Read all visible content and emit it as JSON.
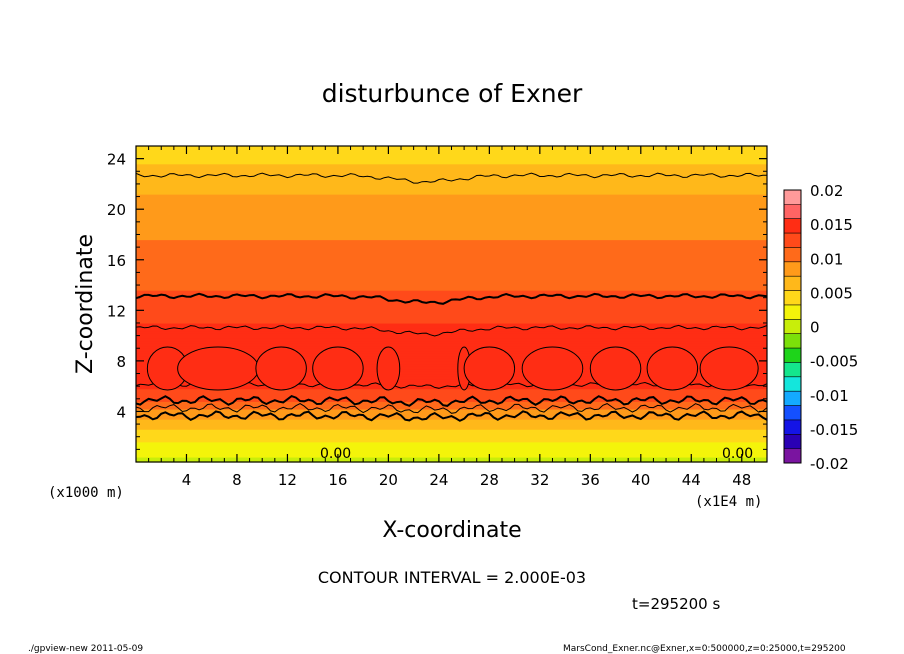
{
  "chart_data": {
    "type": "heatmap",
    "title": "disturbunce of Exner",
    "xlabel": "X-coordinate",
    "ylabel": "Z-coordinate",
    "x_unit": "(x1E4 m)",
    "y_unit": "(x1000 m)",
    "x_ticks": [
      "4",
      "8",
      "12",
      "16",
      "20",
      "24",
      "28",
      "32",
      "36",
      "40",
      "44",
      "48"
    ],
    "y_ticks": [
      "4",
      "8",
      "12",
      "16",
      "20",
      "24"
    ],
    "xlim": [
      0,
      50
    ],
    "ylim": [
      0,
      25
    ],
    "contour_interval_text": "CONTOUR INTERVAL = 2.000E-03",
    "time_text": "t=295200 s",
    "contour_labels": [
      "0.00",
      "0.00"
    ],
    "colorbar": {
      "labels": [
        "0.02",
        "0.015",
        "0.01",
        "0.005",
        "0",
        "-0.005",
        "-0.01",
        "-0.015",
        "-0.02"
      ],
      "colors": [
        "#ff9a9a",
        "#ff6464",
        "#ff2d14",
        "#ff4a1a",
        "#ff6a1a",
        "#ff9a1a",
        "#ffb81a",
        "#ffd81a",
        "#f4f40a",
        "#c8ee0a",
        "#7ce00a",
        "#1ed41a",
        "#14e68c",
        "#14e6dc",
        "#14aaff",
        "#1450ff",
        "#1414e6",
        "#2a00b4",
        "#7a14a0"
      ]
    },
    "band_profile_z": [
      0.0,
      1.0,
      2.0,
      3.0,
      4.0,
      5.0,
      6.5,
      8.0,
      10.0,
      12.5,
      15.0,
      17.5,
      20.0,
      22.0,
      24.0,
      25.0
    ],
    "band_profile_value": [
      0.0005,
      0.002,
      0.004,
      0.006,
      0.009,
      0.0125,
      0.0145,
      0.0152,
      0.0145,
      0.0125,
      0.0105,
      0.0095,
      0.0085,
      0.0065,
      0.005,
      0.004
    ]
  },
  "footer": {
    "left": "./gpview-new   2011-05-09",
    "right": "MarsCond_Exner.nc@Exner,x=0:500000,z=0:25000,t=295200"
  }
}
